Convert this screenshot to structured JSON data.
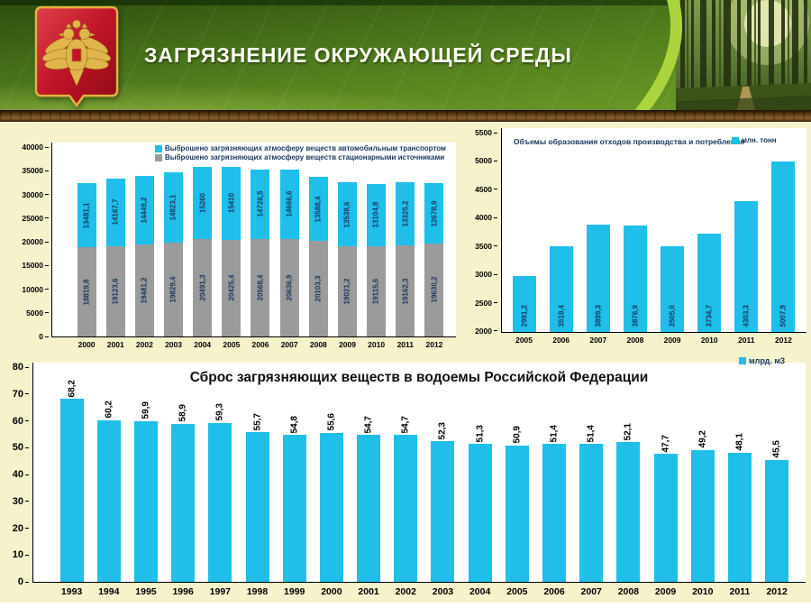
{
  "header": {
    "title": "ЗАГРЯЗНЕНИЕ ОКРУЖАЮЩЕЙ СРЕДЫ",
    "emblem_icon": "russia-coat-of-arms",
    "photo": "forest-path-photo"
  },
  "colors": {
    "bar_cyan": "#1FBFEA",
    "bar_gray": "#9B9B9B",
    "label_navy": "#17375E",
    "page_bg": "#F5F2CC",
    "header_green": "#4E7A1C",
    "accent_lime": "#ABD43E",
    "wood_brown": "#5C3A14"
  },
  "chart_data": [
    {
      "type": "bar",
      "stacked": true,
      "grid": false,
      "legend_position": "top-inside",
      "categories": [
        "2000",
        "2001",
        "2002",
        "2003",
        "2004",
        "2005",
        "2006",
        "2007",
        "2008",
        "2009",
        "2010",
        "2011",
        "2012"
      ],
      "series": [
        {
          "name": "Выброшено загрязняющих атмосферу веществ автомобильным транспортом",
          "color": "#1FBFEA",
          "values": [
            13481.1,
            14167.7,
            14449.2,
            14823.1,
            15260,
            15410,
            14726.5,
            14666.6,
            13588.4,
            13538.6,
            13104.8,
            13325.2,
            12678.9
          ],
          "labels": [
            "13481,1",
            "14167,7",
            "14449,2",
            "14823,1",
            "15260",
            "15410",
            "14726,5",
            "14666,6",
            "13588,4",
            "13538,6",
            "13104,8",
            "13325,2",
            "12678,9"
          ]
        },
        {
          "name": "Выброшено загрязняющих атмосферу веществ стационарными источниками",
          "color": "#9B9B9B",
          "values": [
            18819.8,
            19123.6,
            19481.2,
            19829.4,
            20491.3,
            20425.4,
            20568.4,
            20636.9,
            20103.3,
            19021.2,
            19115.6,
            19162.3,
            19630.2
          ],
          "labels": [
            "18819,8",
            "19123,6",
            "19481,2",
            "19829,4",
            "20491,3",
            "20425,4",
            "20568,4",
            "20636,9",
            "20103,3",
            "19021,2",
            "19115,6",
            "19162,3",
            "19630,2"
          ]
        }
      ],
      "ylim": [
        0,
        40000
      ],
      "yticks": [
        "40000",
        "35000",
        "30000",
        "25000",
        "20000",
        "15000",
        "10000",
        "5000",
        "0"
      ]
    },
    {
      "type": "bar",
      "stacked": false,
      "grid": false,
      "title": "Объемы образования отходов производства и потребления",
      "legend": "млн. тонн",
      "legend_position": "top-right-inside",
      "categories": [
        "2005",
        "2006",
        "2007",
        "2008",
        "2009",
        "2010",
        "2011",
        "2012"
      ],
      "values": [
        2991.2,
        3519.4,
        3899.3,
        3876.9,
        3505.0,
        3734.7,
        4303.3,
        5007.9
      ],
      "labels": [
        "2991,2",
        "3519,4",
        "3899,3",
        "3876,9",
        "3505,0",
        "3734,7",
        "4303,3",
        "5007,9"
      ],
      "ylim": [
        2000,
        5500
      ],
      "yticks": [
        "5500",
        "5000",
        "4500",
        "4000",
        "3500",
        "3000",
        "2500",
        "2000"
      ]
    },
    {
      "type": "bar",
      "stacked": false,
      "grid": false,
      "label_position": "above",
      "title": "Сброс загрязняющих веществ в водоемы Российской Федерации",
      "legend": "млрд. м3",
      "legend_position": "top-right",
      "categories": [
        "1993",
        "1994",
        "1995",
        "1996",
        "1997",
        "1998",
        "1999",
        "2000",
        "2001",
        "2002",
        "2003",
        "2004",
        "2005",
        "2006",
        "2007",
        "2008",
        "2009",
        "2010",
        "2011",
        "2012"
      ],
      "values": [
        68.2,
        60.2,
        59.9,
        58.9,
        59.3,
        55.7,
        54.8,
        55.6,
        54.7,
        54.7,
        52.3,
        51.3,
        50.9,
        51.4,
        51.4,
        52.1,
        47.7,
        49.2,
        48.1,
        45.5
      ],
      "labels": [
        "68,2",
        "60,2",
        "59,9",
        "58,9",
        "59,3",
        "55,7",
        "54,8",
        "55,6",
        "54,7",
        "54,7",
        "52,3",
        "51,3",
        "50,9",
        "51,4",
        "51,4",
        "52,1",
        "47,7",
        "49,2",
        "48,1",
        "45,5"
      ],
      "ylim": [
        0,
        80
      ],
      "yticks": [
        "80",
        "70",
        "60",
        "50",
        "40",
        "30",
        "20",
        "10",
        "0"
      ]
    }
  ]
}
